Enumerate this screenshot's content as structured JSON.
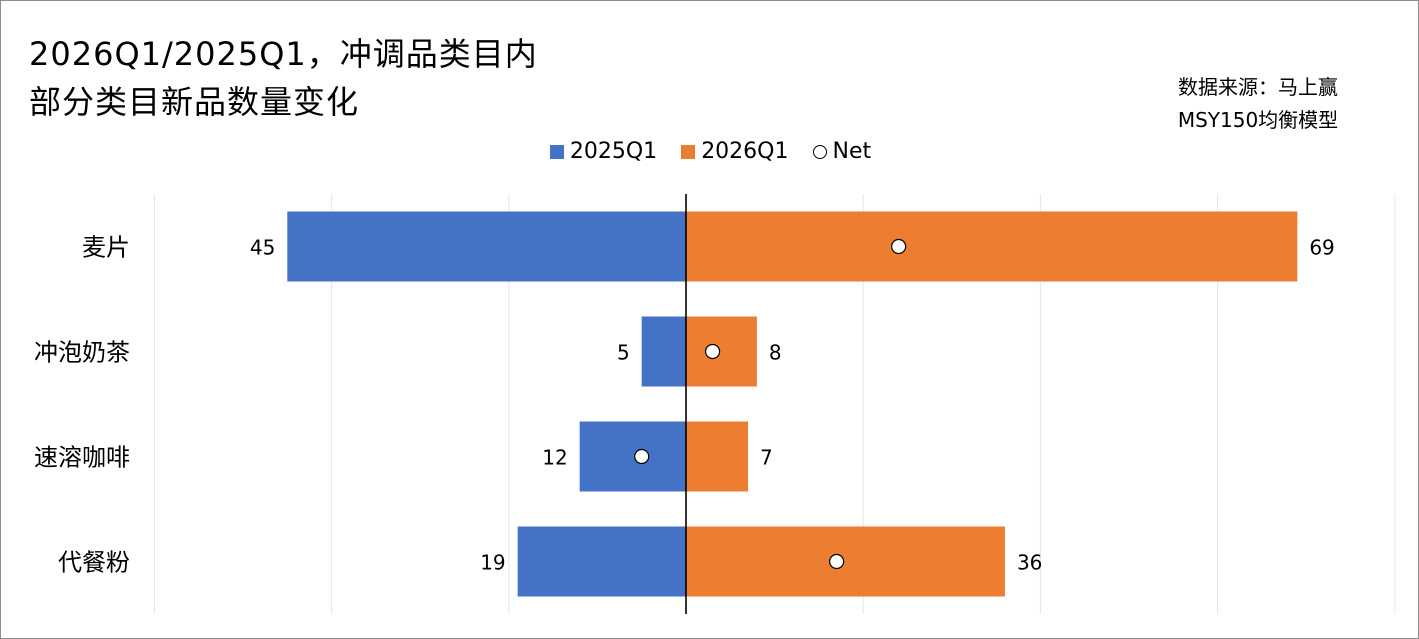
{
  "title": {
    "line1": "2026Q1/2025Q1，冲调品类目内",
    "line2": "部分类目新品数量变化"
  },
  "source": {
    "line1": "数据来源：马上赢",
    "line2": "MSY150均衡模型"
  },
  "legend": {
    "series_a": "2025Q1",
    "series_b": "2026Q1",
    "net": "Net"
  },
  "colors": {
    "series_a": "#4472C4",
    "series_b": "#ED7D31",
    "net_fill": "#FFFFFF",
    "axis": "#000000",
    "grid": "#E6E6E6"
  },
  "chart_data": {
    "type": "bar",
    "orientation": "horizontal-diverging",
    "categories": [
      "麦片",
      "冲泡奶茶",
      "速溶咖啡",
      "代餐粉"
    ],
    "series": [
      {
        "name": "2025Q1",
        "values": [
          45,
          5,
          12,
          19
        ],
        "direction": "left"
      },
      {
        "name": "2026Q1",
        "values": [
          69,
          8,
          7,
          36
        ],
        "direction": "right"
      },
      {
        "name": "Net",
        "values": [
          24,
          3,
          -5,
          17
        ],
        "marker": "circle"
      }
    ],
    "xlim": [
      -60,
      80
    ],
    "grid": true,
    "legend_position": "top-center"
  }
}
